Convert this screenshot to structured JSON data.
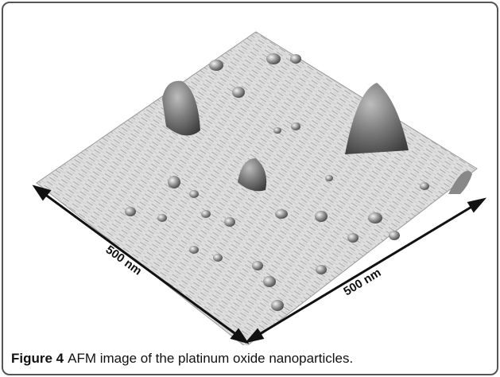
{
  "figure": {
    "image": {
      "scale_labels": [
        "500 nm",
        "500 nm"
      ]
    },
    "caption": {
      "label": "Figure 4",
      "text": "AFM image of the platinum oxide nanoparticles."
    }
  }
}
